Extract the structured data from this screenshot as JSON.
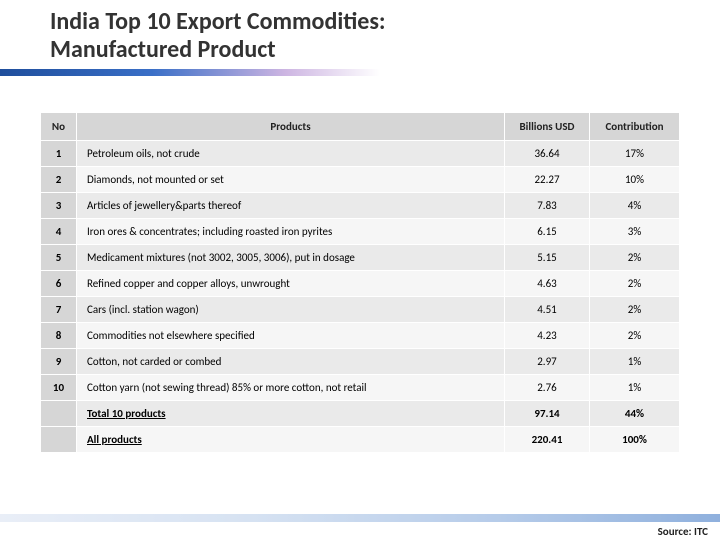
{
  "title_line1": "India Top 10 Export Commodities:",
  "title_line2": "Manufactured Product",
  "table": {
    "columns": [
      "No",
      "Products",
      "Billions USD",
      "Contribution"
    ],
    "rows": [
      {
        "no": "1",
        "product": "Petroleum oils, not crude",
        "usd": "36.64",
        "contrib": "17%"
      },
      {
        "no": "2",
        "product": "Diamonds, not mounted or set",
        "usd": "22.27",
        "contrib": "10%"
      },
      {
        "no": "3",
        "product": "Articles of jewellery&parts thereof",
        "usd": "7.83",
        "contrib": "4%"
      },
      {
        "no": "4",
        "product": "Iron ores & concentrates; including roasted iron pyrites",
        "usd": "6.15",
        "contrib": "3%"
      },
      {
        "no": "5",
        "product": "Medicament mixtures (not 3002, 3005, 3006), put in dosage",
        "usd": "5.15",
        "contrib": "2%"
      },
      {
        "no": "6",
        "product": "Refined copper and copper alloys, unwrought",
        "usd": "4.63",
        "contrib": "2%"
      },
      {
        "no": "7",
        "product": "Cars (incl. station wagon)",
        "usd": "4.51",
        "contrib": "2%"
      },
      {
        "no": "8",
        "product": "Commodities not elsewhere specified",
        "usd": "4.23",
        "contrib": "2%"
      },
      {
        "no": "9",
        "product": "Cotton, not carded or combed",
        "usd": "2.97",
        "contrib": "1%"
      },
      {
        "no": "10",
        "product": "Cotton yarn (not sewing thread) 85% or more cotton, not retail",
        "usd": "2.76",
        "contrib": "1%"
      }
    ],
    "totals": [
      {
        "no": "",
        "product": "Total 10 products",
        "usd": "97.14",
        "contrib": "44%"
      },
      {
        "no": "",
        "product": "All products",
        "usd": "220.41",
        "contrib": "100%"
      }
    ],
    "header_bg": "#d6d6d6",
    "row_odd_bg": "#eaeaea",
    "row_even_bg": "#f6f6f6",
    "border_color": "#ffffff",
    "font_size_pt": 11
  },
  "source_label": "Source: ITC",
  "colors": {
    "title_text": "#333333",
    "underline_gradient": [
      "#1f4e9c",
      "#3a6fc7",
      "#cdb5e2",
      "#ffffff"
    ],
    "bottom_bar_gradient": [
      "#e9eef7",
      "#d6e2f2",
      "#b5cbe9",
      "#8fb0dd"
    ]
  }
}
